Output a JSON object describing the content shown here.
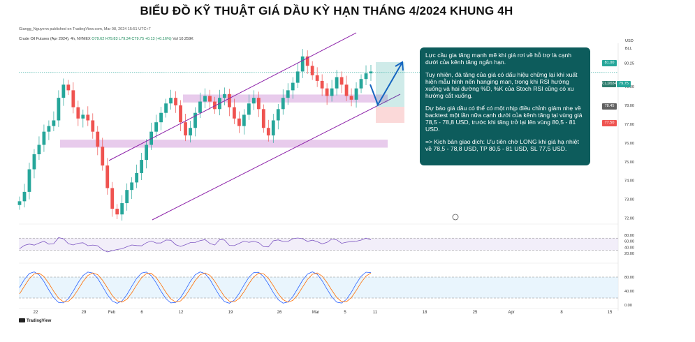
{
  "title": "BIỂU ĐỒ KỸ THUẬT GIÁ DẦU KỲ HẠN THÁNG 4/2024 KHUNG  4H",
  "publisher": "Giangg_Nguyenn published on TradingView.com, Mar 08, 2024 15:51 UTC+7",
  "symbol_line": {
    "name": "Crude Oil Futures (Apr 2024), 4h, NYMEX",
    "ohlc": "O79.62 H79.83 L79.34 C79.75 +0.13 (+0.16%)",
    "volume": "Vol 10.259K"
  },
  "annotation": {
    "p1": "Lực cầu gia tăng mạnh mẽ khi giá rơi về hỗ trợ là cạnh dưới của kênh tăng ngắn hạn.",
    "p2": "Tuy nhiên, đà tăng của giá có dấu hiệu chững lại khi xuất hiện mẫu hình nến hanging man, trong khi RSI hướng xuống và hai đường %D, %K của Stoch RSI cũng có xu hướng cắt xuống.",
    "p3": "Dự báo giá dầu có thể có một nhịp điều chỉnh giảm nhẹ về backtest một lần nữa cạnh dưới của kênh tăng tại vùng giá 78,5 - 78,8 USD, trước khi tăng trở lại lên vùng 80,5 - 81 USD.",
    "p4": "=> Kịch bản giao dịch: Ưu tiên chờ LONG khi giá hạ nhiệt về 78,5 - 78,8 USD, TP 80,5 - 81 USD, SL 77,5 USD."
  },
  "price_axis": {
    "currency": "USD",
    "unit": "BLL",
    "ticks": [
      "80.25",
      "79.00",
      "78.00",
      "77.00",
      "76.00",
      "75.00",
      "74.00",
      "73.00",
      "72.00"
    ],
    "labels": {
      "tp": "81.00",
      "symbol": "CLJ2024",
      "last": "79.75",
      "entry": "78.45",
      "sl": "77.50"
    }
  },
  "rsi_axis": {
    "ticks": [
      "80.00",
      "60.00",
      "40.00",
      "20.00"
    ]
  },
  "stoch_axis": {
    "ticks": [
      "80.00",
      "40.00",
      "0.00"
    ]
  },
  "time_axis": {
    "labels": [
      "22",
      "29",
      "Feb",
      "6",
      "12",
      "19",
      "26",
      "Mar",
      "5",
      "11",
      "18",
      "25",
      "Apr",
      "8",
      "15"
    ]
  },
  "branding": "TradingView",
  "colors": {
    "up": "#26a69a",
    "down": "#ef5350",
    "channel": "#8e24aa",
    "zone": "#d9a9e0",
    "annotation_bg": "#0d5c5c",
    "forecast": "#1565c0",
    "rsi_line": "#7e57c2",
    "stoch_k": "#2962ff",
    "stoch_d": "#ff6d00"
  },
  "chart_data": {
    "type": "candlestick",
    "symbol": "CLJ2024",
    "price_range": [
      71.8,
      81.3
    ],
    "candles_close_approx": [
      72.9,
      73.4,
      74.6,
      75.4,
      75.9,
      76.6,
      76.9,
      77.2,
      78.4,
      79.1,
      78.8,
      77.9,
      77.3,
      77.5,
      77.2,
      76.6,
      75.8,
      74.8,
      73.6,
      72.5,
      72.2,
      72.8,
      73.5,
      73.9,
      74.4,
      75.1,
      75.9,
      76.6,
      77.1,
      77.6,
      78.1,
      78.4,
      78.0,
      77.1,
      76.4,
      76.8,
      77.6,
      78.2,
      78.5,
      78.2,
      77.8,
      78.4,
      78.6,
      77.9,
      77.3,
      76.9,
      77.5,
      78.1,
      78.4,
      77.8,
      76.8,
      76.4,
      77.2,
      77.8,
      78.4,
      78.8,
      79.2,
      79.8,
      80.6,
      80.1,
      79.6,
      79.3,
      78.9,
      78.5,
      78.9,
      79.5,
      79.1,
      78.5,
      78.3,
      78.9,
      79.4,
      79.7,
      79.8
    ],
    "channel_upper": [
      [
        74.9,
        "start"
      ],
      [
        81.3,
        "end"
      ]
    ],
    "zones": [
      {
        "from": 78.3,
        "to": 78.5
      },
      {
        "from": 75.9,
        "to": 76.1
      }
    ],
    "forecast_path": [
      79.75,
      78.6,
      80.9
    ],
    "rsi_range": [
      0,
      100
    ],
    "rsi_last": 56,
    "stoch_range": [
      0,
      100
    ]
  }
}
